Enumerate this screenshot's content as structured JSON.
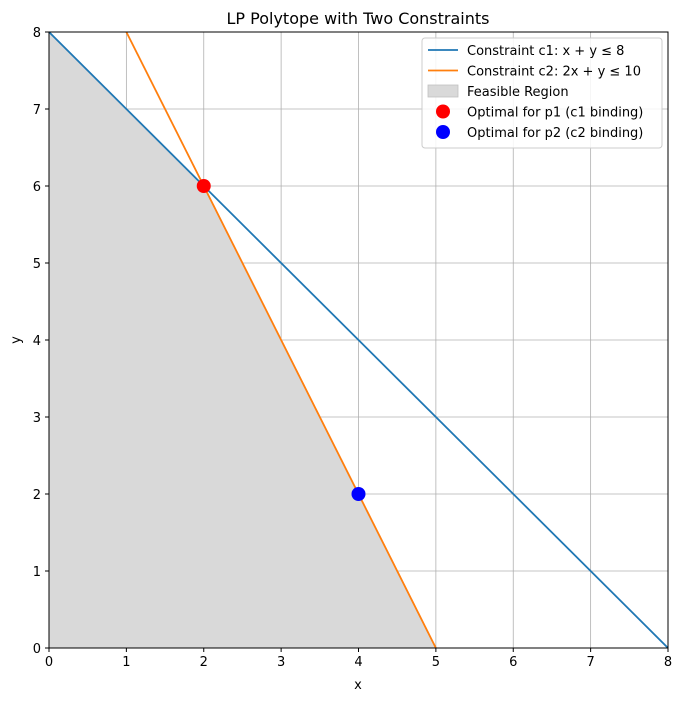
{
  "chart_data": {
    "type": "line",
    "title": "LP Polytope with Two Constraints",
    "xlabel": "x",
    "ylabel": "y",
    "xlim": [
      0,
      8
    ],
    "ylim": [
      0,
      8
    ],
    "xticks": [
      0,
      1,
      2,
      3,
      4,
      5,
      6,
      7,
      8
    ],
    "yticks": [
      0,
      1,
      2,
      3,
      4,
      5,
      6,
      7,
      8
    ],
    "grid": true,
    "legend_position": "top-right",
    "series": [
      {
        "name": "Constraint c1: x + y ≤ 8",
        "type": "line",
        "color": "#1f77b4",
        "x": [
          0,
          8
        ],
        "y": [
          8,
          0
        ]
      },
      {
        "name": "Constraint c2: 2x + y ≤ 10",
        "type": "line",
        "color": "#ff7f0e",
        "x": [
          1,
          5
        ],
        "y": [
          8,
          0
        ]
      }
    ],
    "feasible_region": {
      "name": "Feasible Region",
      "color": "#d9d9d9",
      "vertices": [
        [
          0,
          0
        ],
        [
          0,
          8
        ],
        [
          2,
          6
        ],
        [
          5,
          0
        ]
      ]
    },
    "points": [
      {
        "name": "Optimal for p1 (c1 binding)",
        "x": 2,
        "y": 6,
        "color": "#ff0000"
      },
      {
        "name": "Optimal for p2 (c2 binding)",
        "x": 4,
        "y": 2,
        "color": "#0000ff"
      }
    ]
  }
}
